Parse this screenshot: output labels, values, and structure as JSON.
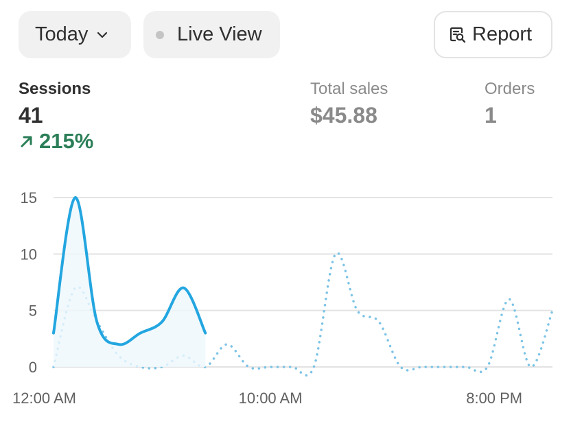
{
  "toolbar": {
    "date_label": "Today",
    "live_label": "Live View",
    "report_label": "Report"
  },
  "metrics": {
    "sessions": {
      "label": "Sessions",
      "value": "41",
      "delta": "215%"
    },
    "total_sales": {
      "label": "Total sales",
      "value": "$45.88"
    },
    "orders": {
      "label": "Orders",
      "value": "1"
    }
  },
  "colors": {
    "current_series": "#23a6e0",
    "comparison_series": "#7cc3e6",
    "positive_delta": "#2b7e57"
  },
  "chart_data": {
    "type": "line",
    "x_tick_labels": [
      "12:00 AM",
      "10:00 AM",
      "8:00 PM"
    ],
    "y_ticks": [
      0,
      5,
      10,
      15
    ],
    "ylim": [
      0,
      15
    ],
    "grid": true,
    "series": [
      {
        "style": "solid",
        "values": [
          3,
          15,
          4,
          2,
          3,
          4,
          7,
          3
        ]
      },
      {
        "style": "dotted",
        "values": [
          0,
          7,
          4,
          1,
          0,
          0,
          1,
          0,
          2,
          0,
          0,
          0,
          0,
          10,
          5,
          4,
          0,
          0,
          0,
          0,
          0,
          6,
          0,
          5
        ]
      }
    ]
  }
}
